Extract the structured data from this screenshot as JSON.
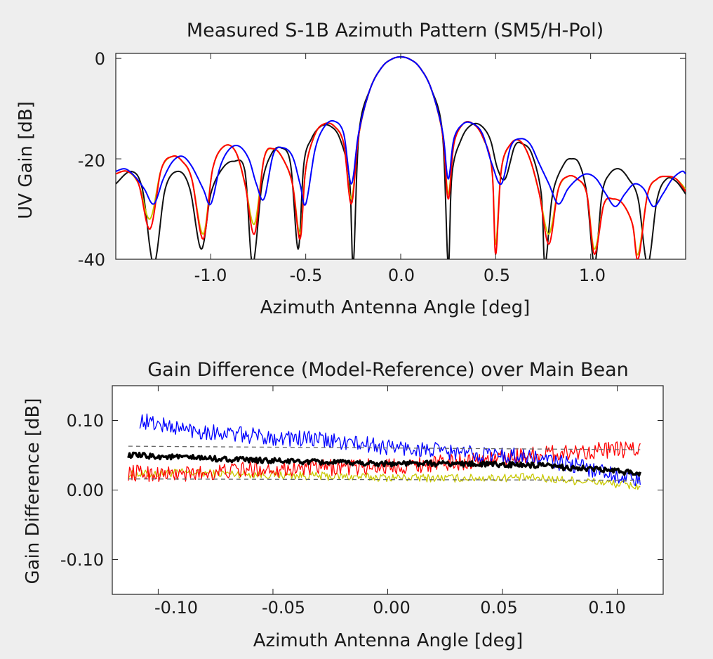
{
  "chart_data": [
    {
      "type": "line",
      "title": "Measured S-1B Azimuth Pattern (SM5/H-Pol)",
      "xlabel": "Azimuth Antenna Angle [deg]",
      "ylabel": "UV Gain [dB]",
      "xlim": [
        -1.5,
        1.5
      ],
      "ylim": [
        -40,
        1
      ],
      "xticks": [
        "-1.0",
        "-0.5",
        "0.0",
        "0.5",
        "1.0"
      ],
      "xtick_values": [
        -1.0,
        -0.5,
        0.0,
        0.5,
        1.0
      ],
      "yticks": [
        "0",
        "-20",
        "-40"
      ],
      "ytick_values": [
        0,
        -20,
        -40
      ],
      "grid": false,
      "series": [
        {
          "color": "#111111",
          "x": [
            -1.5,
            -1.42,
            -1.36,
            -1.3,
            -1.24,
            -1.17,
            -1.11,
            -1.05,
            -1.0,
            -0.94,
            -0.88,
            -0.82,
            -0.78,
            -0.73,
            -0.68,
            -0.63,
            -0.58,
            -0.54,
            -0.51,
            -0.47,
            -0.42,
            -0.37,
            -0.32,
            -0.27,
            -0.25,
            -0.22,
            -0.16,
            -0.1,
            -0.05,
            0.0,
            0.05,
            0.1,
            0.16,
            0.22,
            0.25,
            0.27,
            0.32,
            0.37,
            0.42,
            0.47,
            0.51,
            0.55,
            0.6,
            0.64,
            0.69,
            0.74,
            0.76,
            0.8,
            0.86,
            0.9,
            0.94,
            0.98,
            1.02,
            1.06,
            1.1,
            1.15,
            1.2,
            1.25,
            1.3,
            1.35,
            1.4,
            1.45,
            1.5
          ],
          "values": [
            -25,
            -22.5,
            -26,
            -41,
            -26,
            -22.5,
            -26,
            -38,
            -27,
            -22,
            -20.5,
            -22.5,
            -41,
            -25,
            -19,
            -17.8,
            -21,
            -38,
            -21,
            -16,
            -13.5,
            -13.5,
            -16,
            -24,
            -41,
            -15,
            -6,
            -1.8,
            -0.2,
            0.3,
            -0.2,
            -1.8,
            -6,
            -15,
            -41,
            -23,
            -16,
            -13.3,
            -13.3,
            -16,
            -22,
            -24,
            -17.5,
            -17,
            -19,
            -27,
            -41,
            -27,
            -21,
            -20,
            -21,
            -27,
            -41,
            -27,
            -23,
            -22,
            -24,
            -28,
            -41,
            -28,
            -24,
            -24.5,
            -27
          ]
        },
        {
          "color": "#c8c800",
          "x": [
            -1.5,
            -1.44,
            -1.38,
            -1.32,
            -1.26,
            -1.2,
            -1.15,
            -1.1,
            -1.04,
            -0.99,
            -0.93,
            -0.87,
            -0.82,
            -0.77,
            -0.72,
            -0.67,
            -0.62,
            -0.57,
            -0.53,
            -0.5,
            -0.45,
            -0.4,
            -0.35,
            -0.3,
            -0.26,
            -0.22,
            -0.16,
            -0.1,
            -0.05,
            0.0,
            0.05,
            0.1,
            0.16,
            0.22,
            0.25,
            0.28,
            0.33,
            0.38,
            0.43,
            0.48,
            0.5,
            0.53,
            0.58,
            0.63,
            0.68,
            0.73,
            0.78,
            0.83,
            0.88,
            0.93,
            0.98,
            1.02,
            1.07,
            1.12,
            1.17,
            1.22,
            1.25,
            1.3,
            1.35,
            1.4,
            1.45,
            1.5
          ],
          "values": [
            -23,
            -22.5,
            -25,
            -32,
            -22,
            -19.5,
            -20.5,
            -24,
            -35,
            -22,
            -17.5,
            -18.5,
            -25,
            -33,
            -20,
            -18,
            -20,
            -25,
            -35,
            -22,
            -15,
            -13,
            -13.5,
            -17,
            -28,
            -15,
            -6,
            -1.8,
            -0.2,
            0.3,
            -0.2,
            -1.8,
            -6,
            -15,
            -27,
            -17,
            -13,
            -13,
            -15.5,
            -22,
            -37,
            -22,
            -17,
            -16.5,
            -20,
            -27,
            -35,
            -26,
            -23.5,
            -24,
            -27,
            -38,
            -29,
            -28,
            -29,
            -33,
            -39,
            -27,
            -24,
            -23.5,
            -24,
            -26
          ]
        },
        {
          "color": "#ff0000",
          "x": [
            -1.5,
            -1.44,
            -1.38,
            -1.32,
            -1.26,
            -1.2,
            -1.15,
            -1.1,
            -1.04,
            -0.99,
            -0.93,
            -0.87,
            -0.82,
            -0.77,
            -0.72,
            -0.67,
            -0.62,
            -0.57,
            -0.53,
            -0.5,
            -0.45,
            -0.4,
            -0.35,
            -0.3,
            -0.26,
            -0.22,
            -0.16,
            -0.1,
            -0.05,
            0.0,
            0.05,
            0.1,
            0.16,
            0.22,
            0.25,
            0.28,
            0.33,
            0.38,
            0.43,
            0.48,
            0.5,
            0.53,
            0.58,
            0.63,
            0.68,
            0.73,
            0.78,
            0.83,
            0.88,
            0.93,
            0.98,
            1.02,
            1.07,
            1.12,
            1.17,
            1.22,
            1.25,
            1.3,
            1.35,
            1.4,
            1.45,
            1.5
          ],
          "values": [
            -23,
            -22.5,
            -25,
            -34,
            -22,
            -19.5,
            -20.5,
            -24,
            -36,
            -22,
            -17.5,
            -18.5,
            -25,
            -35,
            -20,
            -18,
            -20,
            -25,
            -36,
            -22,
            -15,
            -13,
            -13.5,
            -17,
            -29,
            -15,
            -6,
            -1.8,
            -0.2,
            0.3,
            -0.2,
            -1.8,
            -6,
            -15,
            -28,
            -17,
            -13,
            -13,
            -15.5,
            -22,
            -39,
            -22,
            -17,
            -16.5,
            -20,
            -27,
            -37,
            -26,
            -23.5,
            -24,
            -27,
            -39,
            -29,
            -28,
            -29,
            -33,
            -40,
            -27,
            -24,
            -23.5,
            -24,
            -26.5
          ]
        },
        {
          "color": "#0000ff",
          "x": [
            -1.5,
            -1.45,
            -1.4,
            -1.35,
            -1.3,
            -1.25,
            -1.2,
            -1.15,
            -1.1,
            -1.04,
            -1.0,
            -0.95,
            -0.9,
            -0.85,
            -0.8,
            -0.76,
            -0.72,
            -0.67,
            -0.62,
            -0.57,
            -0.53,
            -0.5,
            -0.45,
            -0.4,
            -0.35,
            -0.3,
            -0.26,
            -0.22,
            -0.16,
            -0.1,
            -0.05,
            0.0,
            0.05,
            0.1,
            0.16,
            0.22,
            0.25,
            0.28,
            0.33,
            0.38,
            0.43,
            0.48,
            0.53,
            0.58,
            0.63,
            0.68,
            0.73,
            0.78,
            0.83,
            0.88,
            0.93,
            0.98,
            1.03,
            1.08,
            1.13,
            1.18,
            1.23,
            1.28,
            1.33,
            1.38,
            1.43,
            1.48,
            1.5
          ],
          "values": [
            -22.5,
            -22,
            -23.5,
            -26,
            -29,
            -24,
            -20.5,
            -19.5,
            -21.5,
            -26,
            -29,
            -21.5,
            -18,
            -17.5,
            -20,
            -25,
            -28,
            -19,
            -17.8,
            -19.5,
            -25,
            -29,
            -18,
            -13.5,
            -12.5,
            -15,
            -25,
            -14.5,
            -6,
            -1.8,
            -0.2,
            0.3,
            -0.2,
            -1.8,
            -6,
            -14.5,
            -24,
            -16,
            -13,
            -13,
            -15,
            -21,
            -25,
            -17.5,
            -16,
            -17,
            -21,
            -25,
            -29,
            -26,
            -24,
            -23,
            -24,
            -27,
            -29.5,
            -27,
            -25,
            -26,
            -29.5,
            -27,
            -24,
            -22.5,
            -23
          ]
        }
      ]
    },
    {
      "type": "line",
      "title": "Gain Difference (Model-Reference) over Main Bean",
      "xlabel": "Azimuth Antenna Angle [deg]",
      "ylabel": "Gain Difference [dB]",
      "xlim": [
        -0.12,
        0.12
      ],
      "ylim": [
        -0.15,
        0.15
      ],
      "xticks": [
        "-0.10",
        "-0.05",
        "0.00",
        "0.05",
        "0.10"
      ],
      "xtick_values": [
        -0.1,
        -0.05,
        0.0,
        0.05,
        0.1
      ],
      "yticks": [
        "0.10",
        "0.00",
        "-0.10"
      ],
      "ytick_values": [
        0.1,
        0.0,
        -0.1
      ],
      "grid": false,
      "series": [
        {
          "color": "#c8c800",
          "x": [
            -0.113,
            -0.09,
            -0.06,
            -0.03,
            0.0,
            0.03,
            0.06,
            0.09,
            0.11
          ],
          "values": [
            0.022,
            0.025,
            0.023,
            0.02,
            0.018,
            0.017,
            0.018,
            0.012,
            0.005
          ],
          "noise": 0.006
        },
        {
          "color": "#ff0000",
          "x": [
            -0.113,
            -0.09,
            -0.06,
            -0.03,
            0.0,
            0.03,
            0.06,
            0.09,
            0.11
          ],
          "values": [
            0.025,
            0.022,
            0.03,
            0.032,
            0.034,
            0.04,
            0.05,
            0.057,
            0.058
          ],
          "noise": 0.012
        },
        {
          "color": "#0000ff",
          "x": [
            -0.108,
            -0.09,
            -0.06,
            -0.03,
            0.0,
            0.03,
            0.06,
            0.09,
            0.11
          ],
          "values": [
            0.1,
            0.088,
            0.078,
            0.072,
            0.062,
            0.054,
            0.048,
            0.03,
            0.012
          ],
          "noise": 0.012
        },
        {
          "color": "#000000",
          "x": [
            -0.113,
            -0.09,
            -0.06,
            -0.03,
            0.0,
            0.03,
            0.06,
            0.09,
            0.11
          ],
          "values": [
            0.05,
            0.047,
            0.043,
            0.04,
            0.038,
            0.038,
            0.036,
            0.03,
            0.024
          ],
          "noise": 0.004,
          "width": 3.5
        },
        {
          "color": "#666666",
          "dashed": true,
          "x": [
            -0.113,
            0.11
          ],
          "values": [
            0.063,
            0.058
          ]
        },
        {
          "color": "#666666",
          "dashed": true,
          "x": [
            -0.113,
            0.11
          ],
          "values": [
            0.016,
            0.014
          ]
        }
      ]
    }
  ]
}
